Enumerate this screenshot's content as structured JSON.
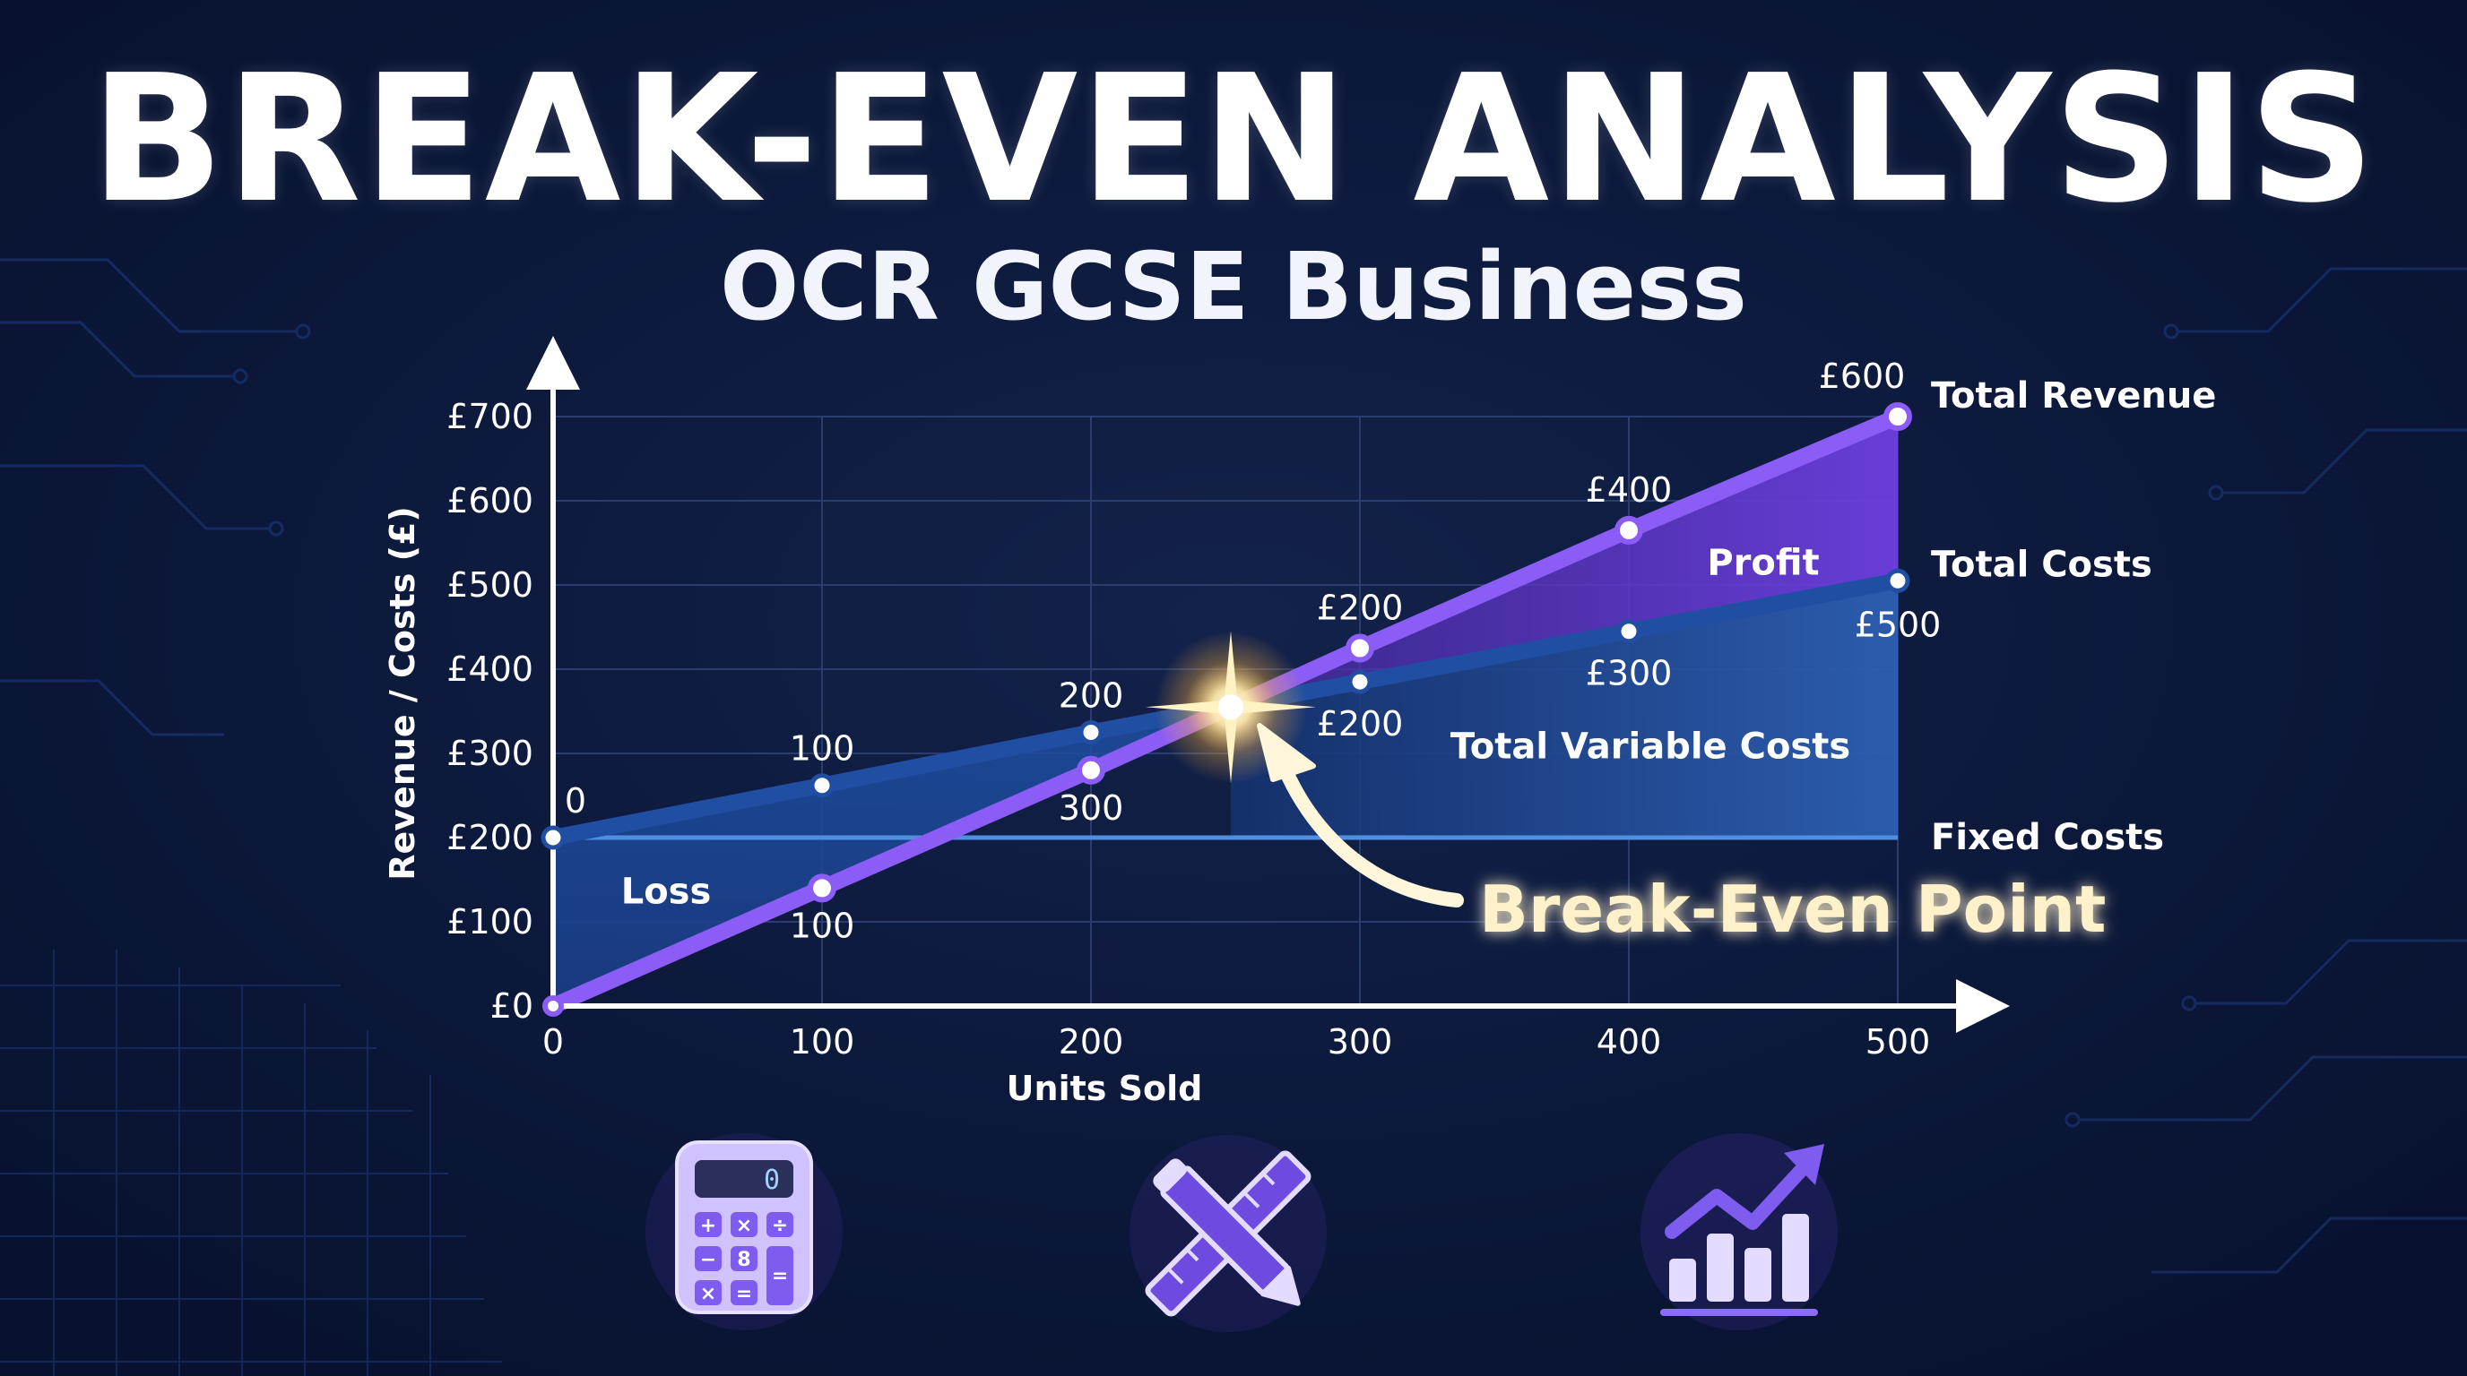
{
  "title": "BREAK-EVEN ANALYSIS",
  "subtitle": "OCR GCSE Business",
  "colors": {
    "background": "#0b1736",
    "revenue": "#8b5cf6",
    "costs": "#1e4fa3",
    "fixed": "#4f8ee0",
    "glow": "#ffd86b"
  },
  "chart_data": {
    "type": "line",
    "xlabel": "Units Sold",
    "ylabel": "Revenue / Costs (£)",
    "x_ticks": [
      "0",
      "100",
      "200",
      "300",
      "400",
      "500"
    ],
    "y_ticks": [
      "£0",
      "£100",
      "£200",
      "£300",
      "£400",
      "£500",
      "£600",
      "£700"
    ],
    "xlim": [
      0,
      500
    ],
    "ylim": [
      0,
      700
    ],
    "grid": true,
    "series": [
      {
        "name": "Total Revenue",
        "x": [
          0,
          100,
          200,
          300,
          400,
          500
        ],
        "y": [
          0,
          140,
          280,
          425,
          565,
          700
        ],
        "point_labels": [
          "",
          "100",
          "300",
          "£200",
          "£400",
          "£600"
        ]
      },
      {
        "name": "Total Costs",
        "x": [
          0,
          100,
          200,
          300,
          400,
          500
        ],
        "y": [
          200,
          262,
          325,
          385,
          445,
          505
        ],
        "point_labels": [
          "0",
          "100",
          "200",
          "£200",
          "£300",
          "£500"
        ]
      },
      {
        "name": "Fixed Costs",
        "x": [
          0,
          500
        ],
        "y": [
          200,
          200
        ],
        "point_labels": []
      }
    ],
    "regions": {
      "loss": "Loss",
      "profit": "Profit",
      "variable": "Total Variable Costs"
    },
    "break_even": {
      "label": "Break-Even Point",
      "x": 252,
      "y": 355
    }
  },
  "icons": [
    "calculator-icon",
    "ruler-pencil-icon",
    "growth-chart-icon"
  ]
}
